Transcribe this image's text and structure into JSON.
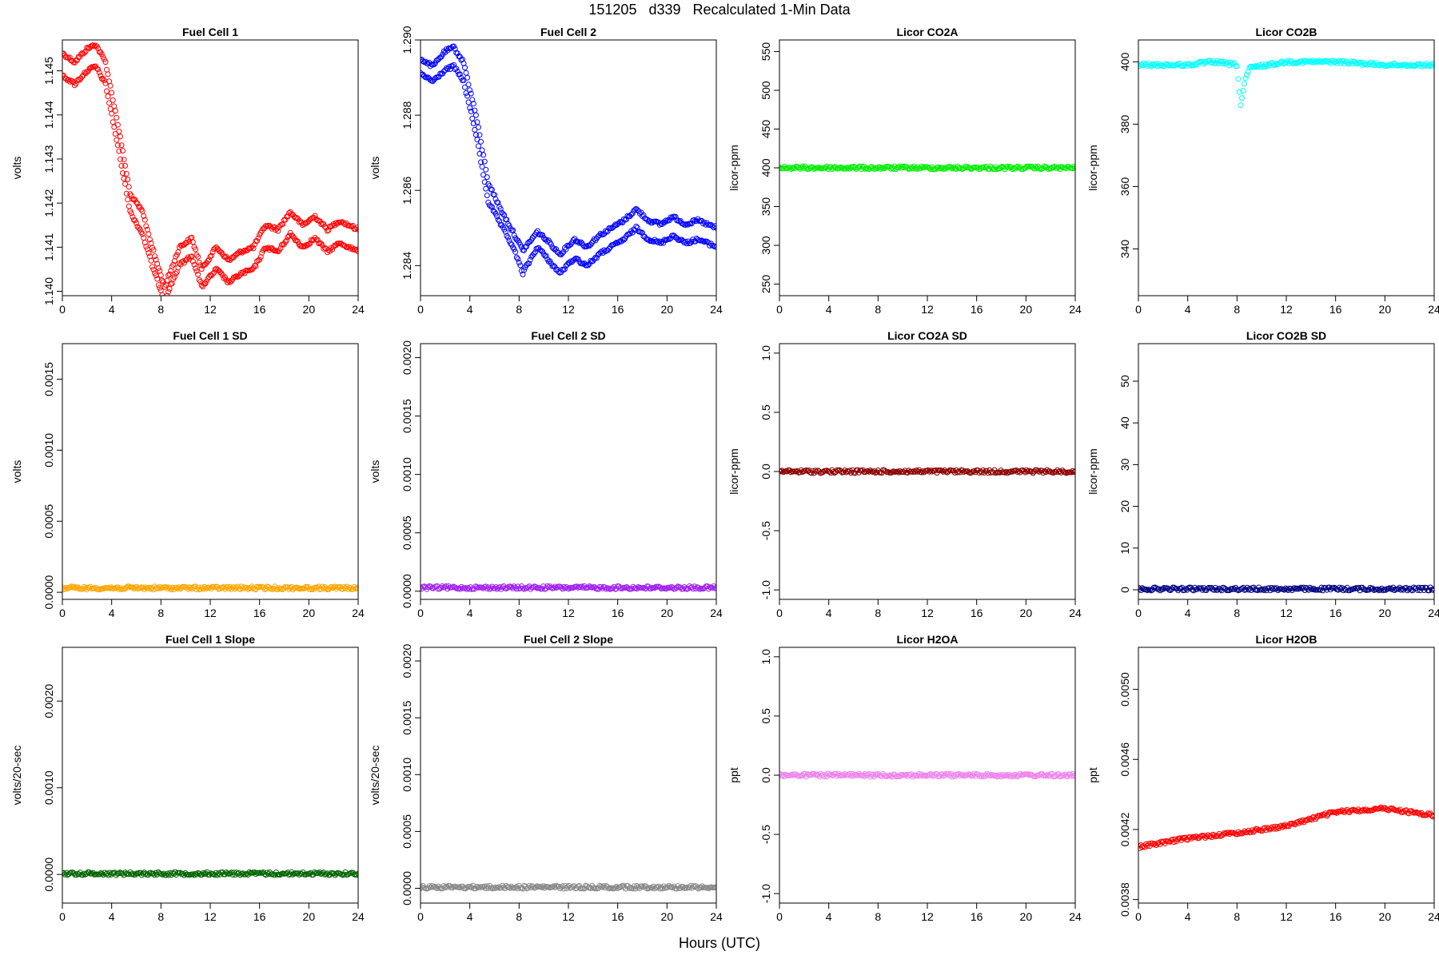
{
  "figure": {
    "title": "151205   d339   Recalculated 1-Min Data",
    "xlabel": "Hours (UTC)"
  },
  "chart_data": [
    {
      "type": "scatter",
      "title": "Fuel Cell 1",
      "ylabel": "volts",
      "color": "#ff0000",
      "xlim": [
        0,
        24
      ],
      "ylim": [
        1.1399,
        1.1457
      ],
      "xticks": [
        0,
        4,
        8,
        12,
        16,
        20,
        24
      ],
      "yticks": [
        1.14,
        1.141,
        1.142,
        1.143,
        1.144,
        1.145
      ],
      "ytick_labels": [
        "1.140",
        "1.141",
        "1.142",
        "1.143",
        "1.144",
        "1.145"
      ],
      "series": [
        {
          "points": [
            [
              0,
              1.1454
            ],
            [
              1,
              1.1452
            ],
            [
              2,
              1.1455
            ],
            [
              2.7,
              1.1456
            ],
            [
              3.5,
              1.1452
            ],
            [
              4.5,
              1.1438
            ],
            [
              5.5,
              1.1422
            ],
            [
              6.5,
              1.1418
            ],
            [
              7.5,
              1.1408
            ],
            [
              8.3,
              1.1401
            ],
            [
              9.5,
              1.141
            ],
            [
              10.5,
              1.1412
            ],
            [
              11.3,
              1.1405
            ],
            [
              12.5,
              1.141
            ],
            [
              13.5,
              1.1407
            ],
            [
              14.5,
              1.1409
            ],
            [
              15.5,
              1.141
            ],
            [
              16.5,
              1.1415
            ],
            [
              17.5,
              1.1414
            ],
            [
              18.5,
              1.1418
            ],
            [
              19.5,
              1.1415
            ],
            [
              20.5,
              1.1417
            ],
            [
              21.5,
              1.1414
            ],
            [
              22.5,
              1.1416
            ],
            [
              24,
              1.1414
            ]
          ]
        },
        {
          "points": [
            [
              0,
              1.1449
            ],
            [
              1,
              1.1447
            ],
            [
              2,
              1.145
            ],
            [
              2.7,
              1.1451
            ],
            [
              3.5,
              1.1447
            ],
            [
              4.5,
              1.1433
            ],
            [
              5.5,
              1.1418
            ],
            [
              6.5,
              1.1413
            ],
            [
              7.5,
              1.1404
            ],
            [
              8.3,
              1.1398
            ],
            [
              9.5,
              1.1406
            ],
            [
              10.5,
              1.1408
            ],
            [
              11.3,
              1.1401
            ],
            [
              12.5,
              1.1405
            ],
            [
              13.5,
              1.1402
            ],
            [
              14.5,
              1.1404
            ],
            [
              15.5,
              1.1405
            ],
            [
              16.5,
              1.141
            ],
            [
              17.5,
              1.1409
            ],
            [
              18.5,
              1.1413
            ],
            [
              19.5,
              1.141
            ],
            [
              20.5,
              1.1412
            ],
            [
              21.5,
              1.1409
            ],
            [
              22.5,
              1.1411
            ],
            [
              24,
              1.1409
            ]
          ]
        }
      ]
    },
    {
      "type": "scatter",
      "title": "Fuel Cell 2",
      "ylabel": "volts",
      "color": "#0000ff",
      "xlim": [
        0,
        24
      ],
      "ylim": [
        1.2832,
        1.29
      ],
      "xticks": [
        0,
        4,
        8,
        12,
        16,
        20,
        24
      ],
      "yticks": [
        1.284,
        1.286,
        1.288,
        1.29
      ],
      "ytick_labels": [
        "1.284",
        "1.286",
        "1.288",
        "1.290"
      ],
      "series": [
        {
          "points": [
            [
              0,
              1.2895
            ],
            [
              1,
              1.2893
            ],
            [
              2,
              1.2897
            ],
            [
              2.7,
              1.2898
            ],
            [
              3.5,
              1.2894
            ],
            [
              4.5,
              1.288
            ],
            [
              5.5,
              1.2862
            ],
            [
              6.5,
              1.2855
            ],
            [
              7.5,
              1.2849
            ],
            [
              8.3,
              1.2844
            ],
            [
              9.5,
              1.2849
            ],
            [
              10.5,
              1.2846
            ],
            [
              11.3,
              1.2843
            ],
            [
              12.5,
              1.2847
            ],
            [
              13.5,
              1.2845
            ],
            [
              14.5,
              1.2848
            ],
            [
              15.5,
              1.285
            ],
            [
              16.5,
              1.2852
            ],
            [
              17.5,
              1.2855
            ],
            [
              18.5,
              1.2852
            ],
            [
              19.5,
              1.2851
            ],
            [
              20.5,
              1.2853
            ],
            [
              21.5,
              1.2851
            ],
            [
              22.5,
              1.2852
            ],
            [
              24,
              1.285
            ]
          ]
        },
        {
          "points": [
            [
              0,
              1.2891
            ],
            [
              1,
              1.2889
            ],
            [
              2,
              1.2892
            ],
            [
              2.7,
              1.2893
            ],
            [
              3.5,
              1.2889
            ],
            [
              4.5,
              1.2875
            ],
            [
              5.5,
              1.2857
            ],
            [
              6.5,
              1.2851
            ],
            [
              7.5,
              1.2845
            ],
            [
              8.3,
              1.2838
            ],
            [
              9.5,
              1.2845
            ],
            [
              10.5,
              1.2841
            ],
            [
              11.3,
              1.2838
            ],
            [
              12.5,
              1.2842
            ],
            [
              13.5,
              1.284
            ],
            [
              14.5,
              1.2843
            ],
            [
              15.5,
              1.2845
            ],
            [
              16.5,
              1.2847
            ],
            [
              17.5,
              1.285
            ],
            [
              18.5,
              1.2847
            ],
            [
              19.5,
              1.2846
            ],
            [
              20.5,
              1.2848
            ],
            [
              21.5,
              1.2846
            ],
            [
              22.5,
              1.2847
            ],
            [
              24,
              1.2845
            ]
          ]
        }
      ]
    },
    {
      "type": "scatter",
      "title": "Licor CO2A",
      "ylabel": "licor-ppm",
      "color": "#00ee00",
      "xlim": [
        0,
        24
      ],
      "ylim": [
        235,
        565
      ],
      "xticks": [
        0,
        4,
        8,
        12,
        16,
        20,
        24
      ],
      "yticks": [
        250,
        300,
        350,
        400,
        450,
        500,
        550
      ],
      "ytick_labels": [
        "250",
        "300",
        "350",
        "400",
        "450",
        "500",
        "550"
      ],
      "series": [
        {
          "points": [
            [
              0,
              400
            ],
            [
              24,
              400
            ]
          ]
        }
      ]
    },
    {
      "type": "scatter",
      "title": "Licor CO2B",
      "ylabel": "licor-ppm",
      "color": "#00ffff",
      "xlim": [
        0,
        24
      ],
      "ylim": [
        325,
        407
      ],
      "xticks": [
        0,
        4,
        8,
        12,
        16,
        20,
        24
      ],
      "yticks": [
        340,
        360,
        380,
        400
      ],
      "ytick_labels": [
        "340",
        "360",
        "380",
        "400"
      ],
      "series": [
        {
          "points": [
            [
              0,
              399
            ],
            [
              2,
              399
            ],
            [
              4,
              399
            ],
            [
              6,
              400
            ],
            [
              8,
              399
            ],
            [
              8.3,
              386
            ],
            [
              8.6,
              393
            ],
            [
              9,
              398
            ],
            [
              12,
              400
            ],
            [
              16,
              400
            ],
            [
              20,
              399
            ],
            [
              24,
              399
            ]
          ]
        }
      ]
    },
    {
      "type": "scatter",
      "title": "Fuel Cell 1 SD",
      "ylabel": "volts",
      "color": "#ffa500",
      "xlim": [
        0,
        24
      ],
      "ylim": [
        -5e-05,
        0.00175
      ],
      "xticks": [
        0,
        4,
        8,
        12,
        16,
        20,
        24
      ],
      "yticks": [
        0,
        0.0005,
        0.001,
        0.0015
      ],
      "ytick_labels": [
        "0.0000",
        "0.0005",
        "0.0010",
        "0.0015"
      ],
      "series": [
        {
          "points": [
            [
              0,
              3e-05
            ],
            [
              24,
              3e-05
            ]
          ]
        }
      ]
    },
    {
      "type": "scatter",
      "title": "Fuel Cell 2 SD",
      "ylabel": "volts",
      "color": "#a020f0",
      "xlim": [
        0,
        24
      ],
      "ylim": [
        -7e-05,
        0.00212
      ],
      "xticks": [
        0,
        4,
        8,
        12,
        16,
        20,
        24
      ],
      "yticks": [
        0,
        0.0005,
        0.001,
        0.0015,
        0.002
      ],
      "ytick_labels": [
        "0.0000",
        "0.0005",
        "0.0010",
        "0.0015",
        "0.0020"
      ],
      "series": [
        {
          "points": [
            [
              0,
              3e-05
            ],
            [
              24,
              3e-05
            ]
          ]
        }
      ]
    },
    {
      "type": "scatter",
      "title": "Licor CO2A SD",
      "ylabel": "licor-ppm",
      "color": "#8b0000",
      "xlim": [
        0,
        24
      ],
      "ylim": [
        -1.08,
        1.08
      ],
      "xticks": [
        0,
        4,
        8,
        12,
        16,
        20,
        24
      ],
      "yticks": [
        -1.0,
        -0.5,
        0.0,
        0.5,
        1.0
      ],
      "ytick_labels": [
        "-1.0",
        "-0.5",
        "0.0",
        "0.5",
        "1.0"
      ],
      "series": [
        {
          "points": [
            [
              0,
              0
            ],
            [
              24,
              0
            ]
          ]
        }
      ]
    },
    {
      "type": "scatter",
      "title": "Licor CO2B SD",
      "ylabel": "licor-ppm",
      "color": "#000080",
      "xlim": [
        0,
        24
      ],
      "ylim": [
        -2.3,
        59
      ],
      "xticks": [
        0,
        4,
        8,
        12,
        16,
        20,
        24
      ],
      "yticks": [
        0,
        10,
        20,
        30,
        40,
        50
      ],
      "ytick_labels": [
        "0",
        "10",
        "20",
        "30",
        "40",
        "50"
      ],
      "series": [
        {
          "points": [
            [
              0,
              0.2
            ],
            [
              24,
              0.2
            ]
          ]
        }
      ]
    },
    {
      "type": "scatter",
      "title": "Fuel Cell 1 Slope",
      "ylabel": "volts/20-sec",
      "color": "#006400",
      "xlim": [
        0,
        24
      ],
      "ylim": [
        -0.00033,
        0.00262
      ],
      "xticks": [
        0,
        4,
        8,
        12,
        16,
        20,
        24
      ],
      "yticks": [
        0,
        0.001,
        0.002
      ],
      "ytick_labels": [
        "0.0000",
        "0.0010",
        "0.0020"
      ],
      "series": [
        {
          "points": [
            [
              0,
              1e-05
            ],
            [
              24,
              1e-05
            ]
          ]
        }
      ]
    },
    {
      "type": "scatter",
      "title": "Fuel Cell 2 Slope",
      "ylabel": "volts/20-sec",
      "color": "#888888",
      "xlim": [
        0,
        24
      ],
      "ylim": [
        -0.00013,
        0.00212
      ],
      "xticks": [
        0,
        4,
        8,
        12,
        16,
        20,
        24
      ],
      "yticks": [
        0,
        0.0005,
        0.001,
        0.0015,
        0.002
      ],
      "ytick_labels": [
        "0.0000",
        "0.0005",
        "0.0010",
        "0.0015",
        "0.0020"
      ],
      "series": [
        {
          "points": [
            [
              0,
              1e-05
            ],
            [
              24,
              1e-05
            ]
          ]
        }
      ]
    },
    {
      "type": "scatter",
      "title": "Licor H2OA",
      "ylabel": "ppt",
      "color": "#ee82ee",
      "xlim": [
        0,
        24
      ],
      "ylim": [
        -1.08,
        1.08
      ],
      "xticks": [
        0,
        4,
        8,
        12,
        16,
        20,
        24
      ],
      "yticks": [
        -1.0,
        -0.5,
        0.0,
        0.5,
        1.0
      ],
      "ytick_labels": [
        "-1.0",
        "-0.5",
        "0.0",
        "0.5",
        "1.0"
      ],
      "series": [
        {
          "points": [
            [
              0,
              0
            ],
            [
              24,
              0
            ]
          ]
        }
      ]
    },
    {
      "type": "scatter",
      "title": "Licor H2OB",
      "ylabel": "ppt",
      "color": "#ff0000",
      "xlim": [
        0,
        24
      ],
      "ylim": [
        0.00378,
        0.00524
      ],
      "xticks": [
        0,
        4,
        8,
        12,
        16,
        20,
        24
      ],
      "yticks": [
        0.0038,
        0.0042,
        0.0046,
        0.005
      ],
      "ytick_labels": [
        "0.0038",
        "0.0042",
        "0.0046",
        "0.0050"
      ],
      "series": [
        {
          "points": [
            [
              0,
              0.0041
            ],
            [
              4,
              0.00415
            ],
            [
              8,
              0.00418
            ],
            [
              12,
              0.00422
            ],
            [
              16,
              0.0043
            ],
            [
              20,
              0.00432
            ],
            [
              24,
              0.00428
            ]
          ]
        }
      ]
    }
  ]
}
